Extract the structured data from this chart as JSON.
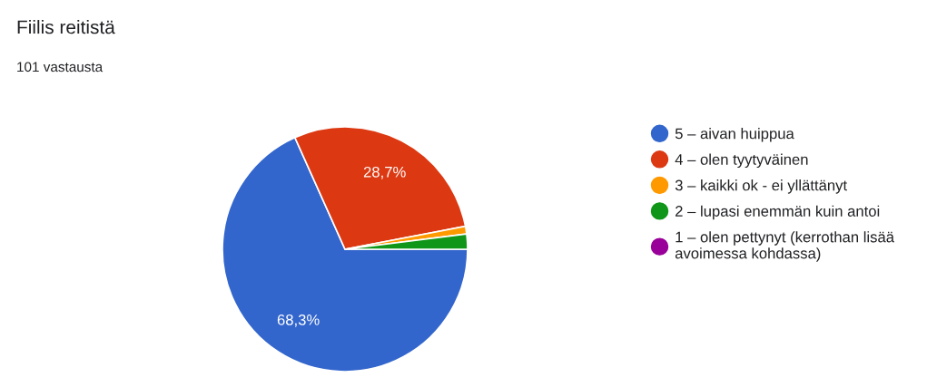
{
  "chart_data": {
    "type": "pie",
    "title": "Fiilis reitistä",
    "subtitle": "101 vastausta",
    "categories": [
      "5 – aivan huippua",
      "4 – olen tyytyväinen",
      "3 – kaikki ok - ei yllättänyt",
      "2 – lupasi enemmän kuin antoi",
      "1 – olen pettynyt (kerrothan lisää avoimessa kohdassa)"
    ],
    "values": [
      68.3,
      28.7,
      1.0,
      2.0,
      0
    ],
    "colors": [
      "#3366cc",
      "#dc3912",
      "#ff9900",
      "#109618",
      "#990099"
    ],
    "value_labels": [
      "68,3%",
      "28,7%",
      null,
      null,
      null
    ],
    "legend": "right"
  }
}
